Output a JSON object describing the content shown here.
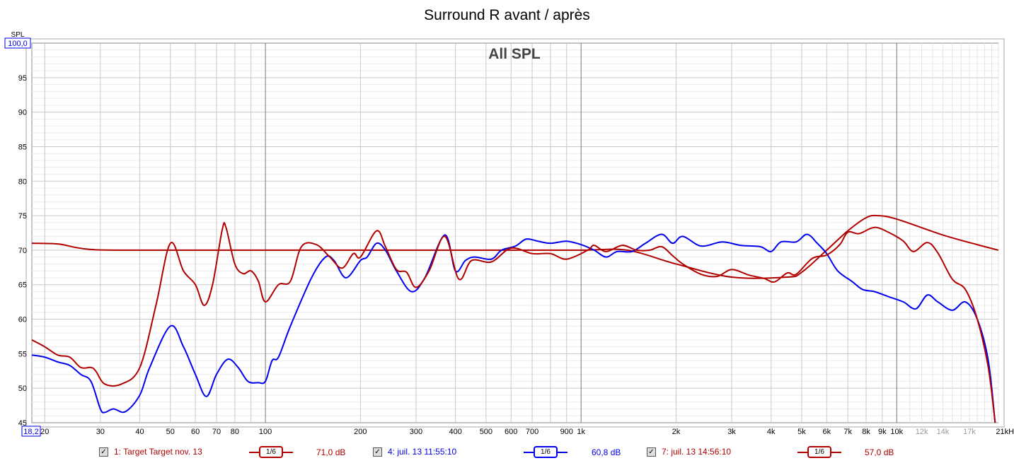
{
  "chart_data": {
    "type": "line",
    "title": "Surround R avant / après",
    "subtitle": "All SPL",
    "ylabel": "SPL",
    "xlabel": "kHz",
    "xscale": "log",
    "xlim": [
      18.2,
      21000
    ],
    "ylim": [
      45,
      100
    ],
    "grid": true,
    "x_axis_start_label": "18,2",
    "y_axis_top_label": "100,0",
    "yticks": [
      95,
      90,
      85,
      80,
      75,
      70,
      65,
      60,
      55,
      50,
      45
    ],
    "xticks": [
      {
        "f": 20,
        "l": "20"
      },
      {
        "f": 30,
        "l": "30"
      },
      {
        "f": 40,
        "l": "40"
      },
      {
        "f": 50,
        "l": "50"
      },
      {
        "f": 60,
        "l": "60"
      },
      {
        "f": 70,
        "l": "70"
      },
      {
        "f": 80,
        "l": "80"
      },
      {
        "f": 100,
        "l": "100"
      },
      {
        "f": 200,
        "l": "200"
      },
      {
        "f": 300,
        "l": "300"
      },
      {
        "f": 400,
        "l": "400"
      },
      {
        "f": 500,
        "l": "500"
      },
      {
        "f": 600,
        "l": "600"
      },
      {
        "f": 700,
        "l": "700"
      },
      {
        "f": 900,
        "l": "900"
      },
      {
        "f": 1000,
        "l": "1k"
      },
      {
        "f": 2000,
        "l": "2k"
      },
      {
        "f": 3000,
        "l": "3k"
      },
      {
        "f": 4000,
        "l": "4k"
      },
      {
        "f": 5000,
        "l": "5k"
      },
      {
        "f": 6000,
        "l": "6k"
      },
      {
        "f": 7000,
        "l": "7k"
      },
      {
        "f": 8000,
        "l": "8k"
      },
      {
        "f": 9000,
        "l": "9k"
      },
      {
        "f": 10000,
        "l": "10k"
      },
      {
        "f": 12000,
        "l": "12k",
        "gray": true
      },
      {
        "f": 14000,
        "l": "14k",
        "gray": true
      },
      {
        "f": 17000,
        "l": "17k",
        "gray": true
      },
      {
        "f": 21000,
        "l": "21kHz"
      }
    ],
    "series": [
      {
        "name": "1: Target Target nov. 13",
        "color": "#b00000",
        "smoothing": "1/6",
        "offset": "71,0 dB",
        "points": [
          [
            18.2,
            71
          ],
          [
            22,
            70.9
          ],
          [
            25,
            70.4
          ],
          [
            28,
            70.1
          ],
          [
            35,
            70
          ],
          [
            100,
            70
          ],
          [
            500,
            70
          ],
          [
            1000,
            70
          ],
          [
            1400,
            70
          ],
          [
            2000,
            68
          ],
          [
            3000,
            66.1
          ],
          [
            4500,
            66.1
          ],
          [
            5000,
            66.8
          ],
          [
            6000,
            70
          ],
          [
            7000,
            72.8
          ],
          [
            8000,
            74.7
          ],
          [
            8700,
            75
          ],
          [
            10000,
            74.5
          ],
          [
            14000,
            72.2
          ],
          [
            18000,
            70.8
          ],
          [
            21000,
            70
          ]
        ]
      },
      {
        "name": "4: juil. 13 11:55:10",
        "color": "#0000ee",
        "smoothing": "1/6",
        "offset": "60,8 dB",
        "points": [
          [
            18.2,
            54.8
          ],
          [
            20,
            54.5
          ],
          [
            22,
            53.8
          ],
          [
            24,
            53.3
          ],
          [
            26,
            52
          ],
          [
            28,
            51
          ],
          [
            30,
            47
          ],
          [
            31,
            46.5
          ],
          [
            33,
            47
          ],
          [
            36,
            46.6
          ],
          [
            40,
            49
          ],
          [
            43,
            53
          ],
          [
            50,
            59
          ],
          [
            55,
            56
          ],
          [
            60,
            52
          ],
          [
            65,
            48.8
          ],
          [
            70,
            52
          ],
          [
            76,
            54.2
          ],
          [
            82,
            53
          ],
          [
            88,
            51
          ],
          [
            95,
            50.8
          ],
          [
            100,
            51
          ],
          [
            105,
            54
          ],
          [
            110,
            54.5
          ],
          [
            120,
            59
          ],
          [
            140,
            66
          ],
          [
            155,
            69
          ],
          [
            165,
            68.5
          ],
          [
            180,
            66
          ],
          [
            200,
            68.5
          ],
          [
            210,
            69
          ],
          [
            225,
            71
          ],
          [
            240,
            70
          ],
          [
            260,
            67
          ],
          [
            290,
            64
          ],
          [
            320,
            66
          ],
          [
            370,
            72.2
          ],
          [
            400,
            67
          ],
          [
            430,
            68.5
          ],
          [
            460,
            69
          ],
          [
            520,
            68.7
          ],
          [
            560,
            70
          ],
          [
            620,
            70.6
          ],
          [
            670,
            71.6
          ],
          [
            730,
            71.3
          ],
          [
            800,
            71
          ],
          [
            900,
            71.3
          ],
          [
            1000,
            70.8
          ],
          [
            1100,
            70
          ],
          [
            1200,
            69
          ],
          [
            1300,
            69.8
          ],
          [
            1450,
            69.8
          ],
          [
            1600,
            71
          ],
          [
            1800,
            72.3
          ],
          [
            1950,
            71
          ],
          [
            2100,
            72
          ],
          [
            2400,
            70.6
          ],
          [
            2800,
            71.2
          ],
          [
            3200,
            70.7
          ],
          [
            3700,
            70.5
          ],
          [
            4000,
            69.8
          ],
          [
            4300,
            71.2
          ],
          [
            4800,
            71.2
          ],
          [
            5200,
            72.3
          ],
          [
            5600,
            71
          ],
          [
            6000,
            69.5
          ],
          [
            6500,
            67
          ],
          [
            7200,
            65.5
          ],
          [
            7800,
            64.3
          ],
          [
            8500,
            64
          ],
          [
            9500,
            63.2
          ],
          [
            10500,
            62.5
          ],
          [
            11500,
            61.5
          ],
          [
            12500,
            63.5
          ],
          [
            13500,
            62.5
          ],
          [
            15000,
            61.3
          ],
          [
            16500,
            62.5
          ],
          [
            18000,
            60
          ],
          [
            19500,
            54
          ],
          [
            20500,
            45
          ]
        ]
      },
      {
        "name": "7: juil. 13 14:56:10",
        "color": "#b00000",
        "smoothing": "1/6",
        "offset": "57,0 dB",
        "points": [
          [
            18.2,
            57
          ],
          [
            20,
            56
          ],
          [
            22,
            54.8
          ],
          [
            24,
            54.5
          ],
          [
            26,
            53
          ],
          [
            28,
            53
          ],
          [
            29,
            52.5
          ],
          [
            31,
            50.6
          ],
          [
            35,
            50.6
          ],
          [
            40,
            53
          ],
          [
            45,
            62
          ],
          [
            50,
            71
          ],
          [
            55,
            67
          ],
          [
            60,
            65
          ],
          [
            64,
            62
          ],
          [
            68,
            65
          ],
          [
            73,
            73
          ],
          [
            75,
            73.3
          ],
          [
            80,
            68
          ],
          [
            85,
            66.6
          ],
          [
            90,
            67
          ],
          [
            95,
            65.5
          ],
          [
            100,
            62.5
          ],
          [
            110,
            65
          ],
          [
            120,
            65.5
          ],
          [
            130,
            70.5
          ],
          [
            145,
            70.8
          ],
          [
            160,
            69
          ],
          [
            175,
            67.4
          ],
          [
            190,
            69.5
          ],
          [
            200,
            69
          ],
          [
            225,
            72.8
          ],
          [
            240,
            70.5
          ],
          [
            260,
            67.2
          ],
          [
            280,
            66.8
          ],
          [
            300,
            64.6
          ],
          [
            330,
            67
          ],
          [
            370,
            72
          ],
          [
            410,
            65.8
          ],
          [
            450,
            68.5
          ],
          [
            520,
            68.3
          ],
          [
            600,
            70.3
          ],
          [
            700,
            69.5
          ],
          [
            800,
            69.5
          ],
          [
            900,
            68.7
          ],
          [
            1050,
            70
          ],
          [
            1100,
            70.7
          ],
          [
            1200,
            69.8
          ],
          [
            1350,
            70.7
          ],
          [
            1500,
            70
          ],
          [
            1650,
            70
          ],
          [
            1800,
            70.5
          ],
          [
            1950,
            69.2
          ],
          [
            2100,
            68
          ],
          [
            2400,
            66.5
          ],
          [
            2700,
            66.2
          ],
          [
            3000,
            67.2
          ],
          [
            3400,
            66.4
          ],
          [
            3800,
            65.9
          ],
          [
            4100,
            65.4
          ],
          [
            4500,
            66.7
          ],
          [
            4800,
            66.5
          ],
          [
            5400,
            68.8
          ],
          [
            6000,
            69.3
          ],
          [
            6600,
            70.8
          ],
          [
            7000,
            72.6
          ],
          [
            7600,
            72.4
          ],
          [
            8500,
            73.3
          ],
          [
            9500,
            72.5
          ],
          [
            10500,
            71.3
          ],
          [
            11300,
            69.8
          ],
          [
            12500,
            71.1
          ],
          [
            13500,
            69.6
          ],
          [
            15000,
            65.8
          ],
          [
            16500,
            64.3
          ],
          [
            18000,
            60
          ],
          [
            19500,
            53
          ],
          [
            20500,
            45
          ]
        ]
      }
    ]
  }
}
